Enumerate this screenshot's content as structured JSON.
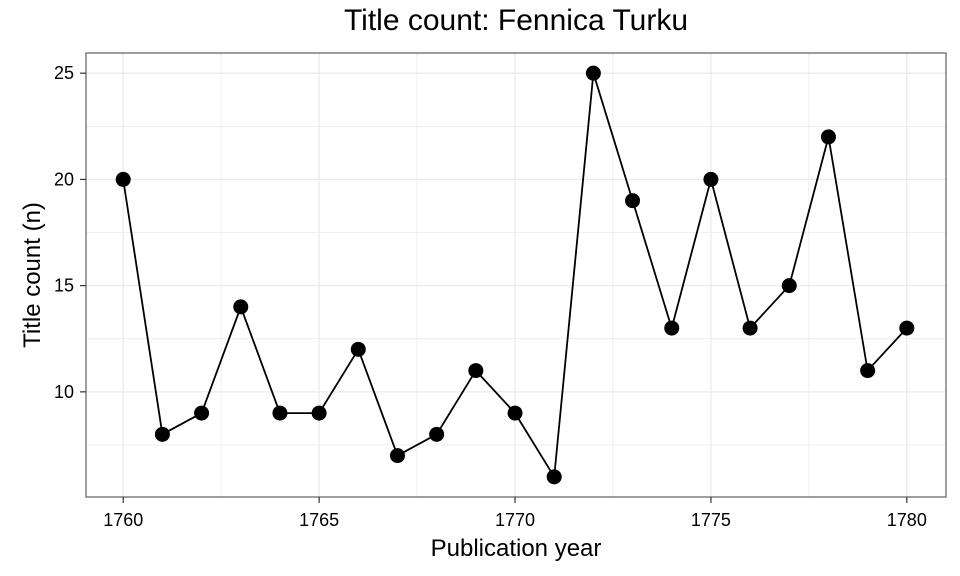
{
  "chart_data": {
    "type": "line",
    "title": "Title count: Fennica Turku",
    "xlabel": "Publication year",
    "ylabel": "Title count (n)",
    "x": [
      1760,
      1761,
      1762,
      1763,
      1764,
      1765,
      1766,
      1767,
      1768,
      1769,
      1770,
      1771,
      1772,
      1773,
      1774,
      1775,
      1776,
      1777,
      1778,
      1779,
      1780
    ],
    "y": [
      20,
      8,
      9,
      14,
      9,
      9,
      12,
      7,
      8,
      11,
      9,
      6,
      25,
      19,
      13,
      20,
      13,
      15,
      22,
      11,
      13
    ],
    "xlim": [
      1759.05,
      1781.0
    ],
    "ylim": [
      5.05,
      25.95
    ],
    "xticks": [
      1760,
      1765,
      1770,
      1775,
      1780
    ],
    "yticks": [
      10,
      15,
      20,
      25
    ],
    "grid": true,
    "legend": "none",
    "colors": {
      "line": "#000000",
      "points": "#000000",
      "panel_border": "#7f7f7f",
      "grid": "#ebebeb"
    }
  }
}
